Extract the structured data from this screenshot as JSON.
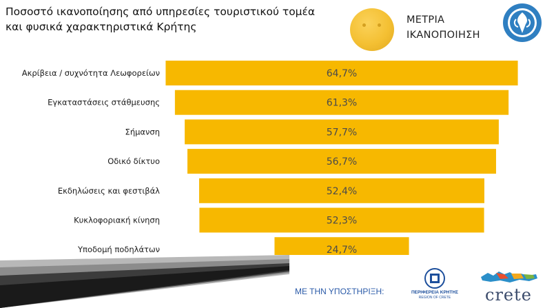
{
  "header": {
    "title_line1": "Ποσοστό ικανοποίησης από υπηρεσίες τουριστικού τομέα",
    "title_line2": "και φυσικά χαρακτηριστικά Κρήτης",
    "satisfaction_line1": "ΜΕΤΡΙΑ",
    "satisfaction_line2": "ΙΚΑΝΟΠΟΙΗΣΗ",
    "smiley_icon": "neutral-face-icon"
  },
  "chart_data": {
    "type": "bar",
    "orientation": "horizontal-centered",
    "categories": [
      "Ακρίβεια / συχνότητα Λεωφορείων",
      "Εγκαταστάσεις στάθμευσης",
      "Σήμανση",
      "Οδικό δίκτυο",
      "Εκδηλώσεις και φεστιβάλ",
      "Κυκλοφοριακή κίνηση",
      "Υποδομή ποδηλάτων"
    ],
    "values": [
      64.7,
      61.3,
      57.7,
      56.7,
      52.4,
      52.3,
      24.7
    ],
    "labels": [
      "64,7%",
      "61,3%",
      "57,7%",
      "56,7%",
      "52,4%",
      "52,3%",
      "24,7%"
    ],
    "unit": "%",
    "bar_color": "#f7b800",
    "label_color": "#4a4a4a",
    "legend": "none",
    "grid": false
  },
  "footer": {
    "support_text": "ΜΕ ΤΗΝ ΥΠΟΣΤΗΡΙΞΗ:",
    "region_name": "ΠΕΡΙΦΕΡΕΙΑ ΚΡΗΤΗΣ",
    "region_sub": "REGION OF CRETE",
    "crete_word": "crete"
  }
}
